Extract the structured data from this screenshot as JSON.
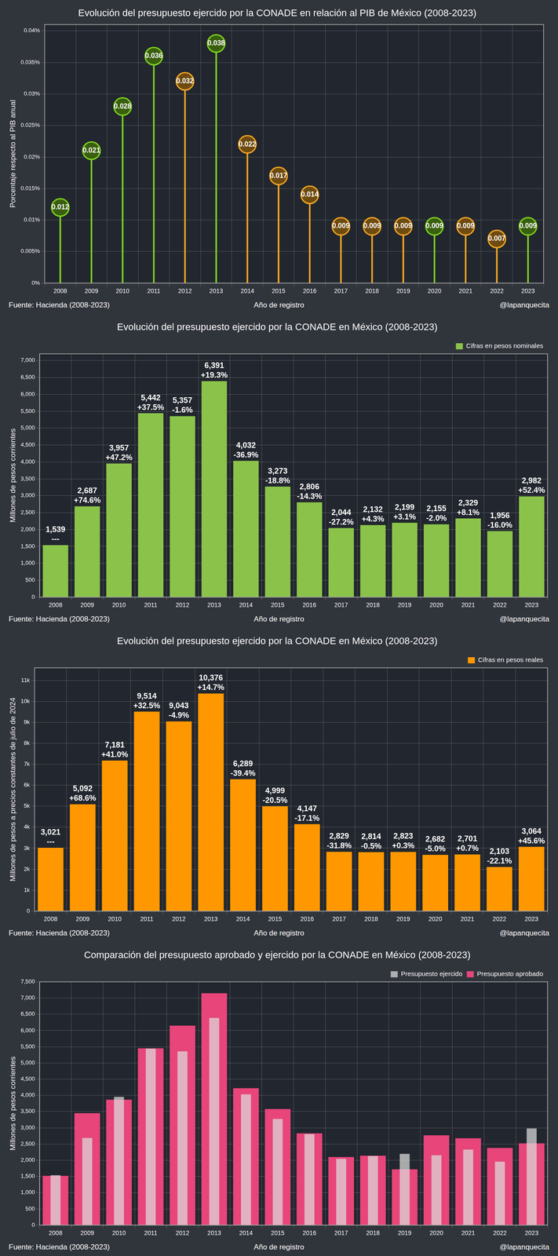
{
  "chart_data": [
    {
      "type": "lollipop",
      "title": "Evolución del presupuesto ejercido por la CONADE en relación al PIB de México (2008-2023)",
      "categories": [
        "2008",
        "2009",
        "2010",
        "2011",
        "2012",
        "2013",
        "2014",
        "2015",
        "2016",
        "2017",
        "2018",
        "2019",
        "2020",
        "2021",
        "2022",
        "2023"
      ],
      "values": [
        0.012,
        0.021,
        0.028,
        0.036,
        0.032,
        0.038,
        0.022,
        0.017,
        0.014,
        0.009,
        0.009,
        0.009,
        0.009,
        0.009,
        0.007,
        0.009
      ],
      "colors": [
        "#7ed321",
        "#7ed321",
        "#7ed321",
        "#7ed321",
        "#f5a623",
        "#7ed321",
        "#f5a623",
        "#f5a623",
        "#f5a623",
        "#f5a623",
        "#f5a623",
        "#f5a623",
        "#7ed321",
        "#f5a623",
        "#f5a623",
        "#7ed321"
      ],
      "ylim": [
        0,
        0.041
      ],
      "yticks": [
        {
          "value": 0,
          "label": "0%"
        },
        {
          "value": 0.005,
          "label": "0.005%"
        },
        {
          "value": 0.01,
          "label": "0.01%"
        },
        {
          "value": 0.015,
          "label": "0.015%"
        },
        {
          "value": 0.02,
          "label": "0.02%"
        },
        {
          "value": 0.025,
          "label": "0.025%"
        },
        {
          "value": 0.03,
          "label": "0.03%"
        },
        {
          "value": 0.035,
          "label": "0.035%"
        },
        {
          "value": 0.04,
          "label": "0.04%"
        }
      ],
      "y_label": "Porcentaje respecto al PIB anual",
      "x_label": "Año de registro",
      "source": "Fuente: Hacienda (2008-2023)",
      "credit": "@lapanquecita",
      "grid": true,
      "data_labels": true
    },
    {
      "type": "bar",
      "title": "Evolución del presupuesto ejercido por la CONADE en México (2008-2023)",
      "categories": [
        "2008",
        "2009",
        "2010",
        "2011",
        "2012",
        "2013",
        "2014",
        "2015",
        "2016",
        "2017",
        "2018",
        "2019",
        "2020",
        "2021",
        "2022",
        "2023"
      ],
      "series": [
        {
          "name": "Cifras en pesos nominales",
          "color": "#8bc34a",
          "values": [
            1539,
            2687,
            3957,
            5442,
            5357,
            6391,
            4032,
            3273,
            2806,
            2044,
            2132,
            2199,
            2155,
            2329,
            1956,
            2982
          ],
          "value_labels": [
            "1,539",
            "2,687",
            "3,957",
            "5,442",
            "5,357",
            "6,391",
            "4,032",
            "3,273",
            "2,806",
            "2,044",
            "2,132",
            "2,199",
            "2,155",
            "2,329",
            "1,956",
            "2,982"
          ],
          "annotations": [
            "---",
            "+74.6%",
            "+47.2%",
            "+37.5%",
            "-1.6%",
            "+19.3%",
            "-36.9%",
            "-18.8%",
            "-14.3%",
            "-27.2%",
            "+4.3%",
            "+3.1%",
            "-2.0%",
            "+8.1%",
            "-16.0%",
            "+52.4%"
          ]
        }
      ],
      "ylim": [
        0,
        7200
      ],
      "yticks": [
        0,
        500,
        {
          "value": 1000,
          "label": "1,000"
        },
        {
          "value": 1500,
          "label": "1,500"
        },
        {
          "value": 2000,
          "label": "2,000"
        },
        {
          "value": 2500,
          "label": "2,500"
        },
        {
          "value": 3000,
          "label": "3,000"
        },
        {
          "value": 3500,
          "label": "3,500"
        },
        {
          "value": 4000,
          "label": "4,000"
        },
        {
          "value": 4500,
          "label": "4,500"
        },
        {
          "value": 5000,
          "label": "5,000"
        },
        {
          "value": 5500,
          "label": "5,500"
        },
        {
          "value": 6000,
          "label": "6,000"
        },
        {
          "value": 6500,
          "label": "6,500"
        },
        {
          "value": 7000,
          "label": "7,000"
        }
      ],
      "y_label": "Millones de pesos corrientes",
      "x_label": "Año de registro",
      "source": "Fuente: Hacienda (2008-2023)",
      "credit": "@lapanquecita",
      "grid": true,
      "legend": "upper right",
      "data_labels": true
    },
    {
      "type": "bar",
      "title": "Evolución del presupuesto ejercido por la CONADE en México (2008-2023)",
      "categories": [
        "2008",
        "2009",
        "2010",
        "2011",
        "2012",
        "2013",
        "2014",
        "2015",
        "2016",
        "2017",
        "2018",
        "2019",
        "2020",
        "2021",
        "2022",
        "2023"
      ],
      "series": [
        {
          "name": "Cifras en pesos reales",
          "color": "#ff9800",
          "values": [
            3021,
            5092,
            7181,
            9514,
            9043,
            10376,
            6289,
            4999,
            4147,
            2829,
            2814,
            2823,
            2682,
            2701,
            2103,
            3064
          ],
          "value_labels": [
            "3,021",
            "5,092",
            "7,181",
            "9,514",
            "9,043",
            "10,376",
            "6,289",
            "4,999",
            "4,147",
            "2,829",
            "2,814",
            "2,823",
            "2,682",
            "2,701",
            "2,103",
            "3,064"
          ],
          "annotations": [
            "---",
            "+68.6%",
            "+41.0%",
            "+32.5%",
            "-4.9%",
            "+14.7%",
            "-39.4%",
            "-20.5%",
            "-17.1%",
            "-31.8%",
            "-0.5%",
            "+0.3%",
            "-5.0%",
            "+0.7%",
            "-22.1%",
            "+45.6%"
          ]
        }
      ],
      "ylim": [
        0,
        11600
      ],
      "yticks": [
        0,
        {
          "value": 1000,
          "label": "1k"
        },
        {
          "value": 2000,
          "label": "2k"
        },
        {
          "value": 3000,
          "label": "3k"
        },
        {
          "value": 4000,
          "label": "4k"
        },
        {
          "value": 5000,
          "label": "5k"
        },
        {
          "value": 6000,
          "label": "6k"
        },
        {
          "value": 7000,
          "label": "7k"
        },
        {
          "value": 8000,
          "label": "8k"
        },
        {
          "value": 9000,
          "label": "9k"
        },
        {
          "value": 10000,
          "label": "10k"
        },
        {
          "value": 11000,
          "label": "11k"
        }
      ],
      "y_label": "Millones de pesos a precios constantes de julio de 2024",
      "x_label": "Año de registro",
      "source": "Fuente: Hacienda (2008-2023)",
      "credit": "@lapanquecita",
      "grid": true,
      "legend": "upper right",
      "data_labels": true
    },
    {
      "type": "bar",
      "title": "Comparación del presupuesto aprobado y ejercido por la CONADE en México (2008-2023)",
      "categories": [
        "2008",
        "2009",
        "2010",
        "2011",
        "2012",
        "2013",
        "2014",
        "2015",
        "2016",
        "2017",
        "2018",
        "2019",
        "2020",
        "2021",
        "2022",
        "2023"
      ],
      "series": [
        {
          "name": "Presupuesto aprobado",
          "color": "#e8457a",
          "values": [
            1520,
            3450,
            3870,
            5450,
            6150,
            7150,
            4220,
            3580,
            2830,
            2100,
            2140,
            1720,
            2770,
            2680,
            2380,
            2520
          ]
        },
        {
          "name": "Presupuesto ejercido",
          "color": "#dddddd",
          "values": [
            1539,
            2687,
            3957,
            5442,
            5357,
            6391,
            4032,
            3273,
            2806,
            2044,
            2132,
            2199,
            2155,
            2329,
            1956,
            2982
          ]
        }
      ],
      "ylim": [
        0,
        7500
      ],
      "yticks": [
        0,
        500,
        {
          "value": 1000,
          "label": "1,000"
        },
        {
          "value": 1500,
          "label": "1,500"
        },
        {
          "value": 2000,
          "label": "2,000"
        },
        {
          "value": 2500,
          "label": "2,500"
        },
        {
          "value": 3000,
          "label": "3,000"
        },
        {
          "value": 3500,
          "label": "3,500"
        },
        {
          "value": 4000,
          "label": "4,000"
        },
        {
          "value": 4500,
          "label": "4,500"
        },
        {
          "value": 5000,
          "label": "5,000"
        },
        {
          "value": 5500,
          "label": "5,500"
        },
        {
          "value": 6000,
          "label": "6,000"
        },
        {
          "value": 6500,
          "label": "6,500"
        },
        {
          "value": 7000,
          "label": "7,000"
        },
        {
          "value": 7500,
          "label": "7,500"
        }
      ],
      "y_label": "Millones de pesos corrientes",
      "x_label": "Año de registro",
      "source": "Fuente: Hacienda (2008-2023)",
      "credit": "@lapanquecita",
      "grid": true,
      "legend": "upper right"
    }
  ]
}
